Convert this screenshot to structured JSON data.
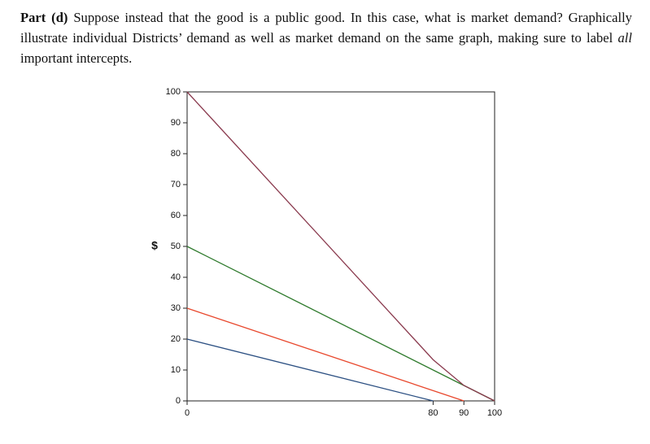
{
  "text": {
    "part": "Part (d)",
    "body1": "Suppose instead that the good is a public good. In this case, what is market demand? Graphically illustrate individual Districts’ demand as well as market demand on the same graph, making sure to label",
    "emph": "all",
    "body2": "important intercepts."
  },
  "chart_data": {
    "type": "line",
    "ylabel": "$",
    "xlim": [
      0,
      100
    ],
    "ylim": [
      0,
      100
    ],
    "xticks": [
      0,
      80,
      90,
      100
    ],
    "yticks": [
      0,
      10,
      20,
      30,
      40,
      50,
      60,
      70,
      80,
      90,
      100
    ],
    "series": [
      {
        "color": "#2b4f82",
        "x": [
          0,
          80
        ],
        "values": [
          20,
          0
        ]
      },
      {
        "color": "#e8472c",
        "x": [
          0,
          90
        ],
        "values": [
          30,
          0
        ]
      },
      {
        "color": "#2e7a2c",
        "x": [
          0,
          100
        ],
        "values": [
          50,
          0
        ]
      },
      {
        "color": "#8a3a4e",
        "x": [
          0,
          80,
          90,
          100
        ],
        "values": [
          100,
          13.33,
          5,
          0
        ]
      }
    ]
  }
}
